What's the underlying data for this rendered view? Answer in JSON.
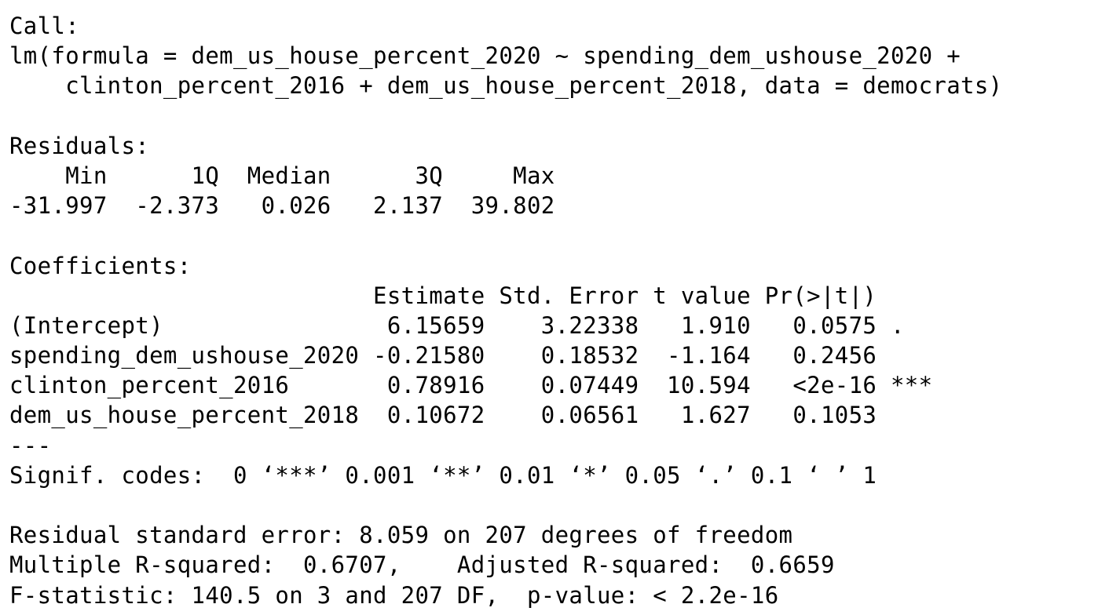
{
  "lines": [
    "Call:",
    "lm(formula = dem_us_house_percent_2020 ~ spending_dem_ushouse_2020 +",
    "    clinton_percent_2016 + dem_us_house_percent_2018, data = democrats)",
    "",
    "Residuals:",
    "    Min      1Q  Median      3Q     Max ",
    "-31.997  -2.373   0.026   2.137  39.802 ",
    "",
    "Coefficients:",
    "                          Estimate Std. Error t value Pr(>|t|)    ",
    "(Intercept)                6.15659    3.22338   1.910   0.0575 .  ",
    "spending_dem_ushouse_2020 -0.21580    0.18532  -1.164   0.2456    ",
    "clinton_percent_2016       0.78916    0.07449  10.594   <2e-16 ***",
    "dem_us_house_percent_2018  0.10672    0.06561   1.627   0.1053    ",
    "---",
    "Signif. codes:  0 ‘***’ 0.001 ‘**’ 0.01 ‘*’ 0.05 ‘.’ 0.1 ‘ ’ 1",
    "",
    "Residual standard error: 8.059 on 207 degrees of freedom",
    "Multiple R-squared:  0.6707,    Adjusted R-squared:  0.6659 ",
    "F-statistic: 140.5 on 3 and 207 DF,  p-value: < 2.2e-16"
  ]
}
